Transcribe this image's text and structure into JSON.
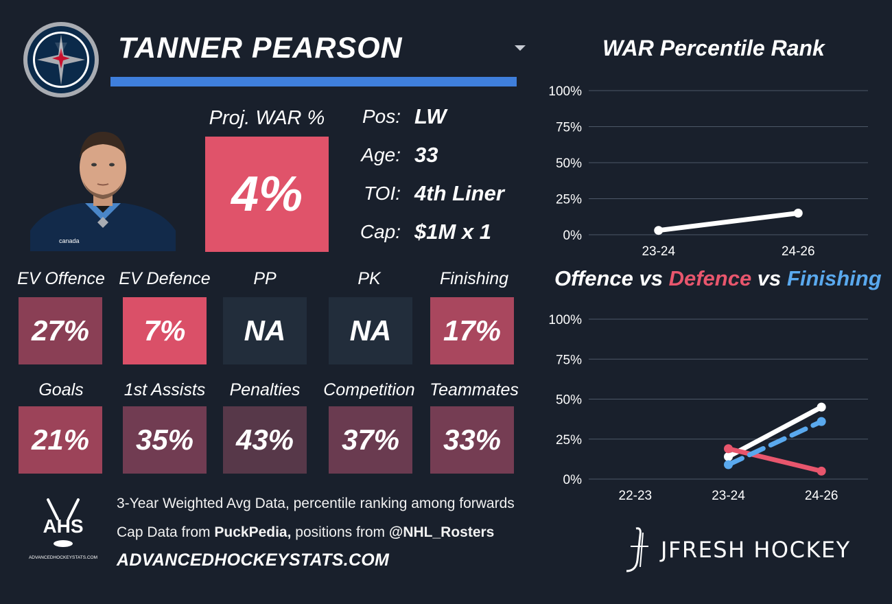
{
  "team": {
    "logo": "winnipeg-jets-logo",
    "colors": {
      "navy": "#0b2a4a",
      "blue": "#3f7fdc",
      "silver": "#a9acb2",
      "red": "#c8102e"
    }
  },
  "player": {
    "name": "TANNER PEARSON",
    "headshot": "player-headshot",
    "jersey_text": "canada"
  },
  "proj_war": {
    "label": "Proj. WAR %",
    "value": "4%",
    "color": "#e0536a"
  },
  "info": [
    {
      "label": "Pos:",
      "value": "LW"
    },
    {
      "label": "Age:",
      "value": "33"
    },
    {
      "label": "TOI:",
      "value": "4th Liner"
    },
    {
      "label": "Cap:",
      "value": "$1M x 1"
    }
  ],
  "stats_row1": [
    {
      "label": "EV Offence",
      "value": "27%",
      "color": "#8a3f55"
    },
    {
      "label": "EV Defence",
      "value": "7%",
      "color": "#da5068"
    },
    {
      "label": "PP",
      "value": "NA",
      "color": "#222d3b"
    },
    {
      "label": "PK",
      "value": "NA",
      "color": "#222d3b"
    },
    {
      "label": "Finishing",
      "value": "17%",
      "color": "#a9475e"
    }
  ],
  "stats_row2": [
    {
      "label": "Goals",
      "value": "21%",
      "color": "#9c4359"
    },
    {
      "label": "1st Assists",
      "value": "35%",
      "color": "#713c52"
    },
    {
      "label": "Penalties",
      "value": "43%",
      "color": "#573849"
    },
    {
      "label": "Competition",
      "value": "37%",
      "color": "#6a3b50"
    },
    {
      "label": "Teammates",
      "value": "33%",
      "color": "#753d53"
    }
  ],
  "footer": {
    "line1": "3-Year Weighted Avg Data, percentile ranking among forwards",
    "line2_prefix": "Cap Data from ",
    "line2_source1": "PuckPedia,",
    "line2_mid": " positions from ",
    "line2_source2": "@NHL_Rosters",
    "site": "ADVANCEDHOCKEYSTATS.COM",
    "ahs_logo": {
      "text": "AHS",
      "small": "ADVANCEDHOCKEYSTATS.COM"
    },
    "jfresh_logo": {
      "text": "JFRESH HOCKEY"
    }
  },
  "chart_data": [
    {
      "type": "line",
      "title": "WAR Percentile Rank",
      "categories": [
        "23-24",
        "24-26"
      ],
      "series": [
        {
          "values": [
            3,
            15
          ],
          "color": "#ffffff"
        }
      ],
      "ylim": [
        0,
        100
      ],
      "yticks": [
        "0%",
        "25%",
        "50%",
        "75%",
        "100%"
      ],
      "grid": true
    },
    {
      "type": "line",
      "title_parts": [
        {
          "text": "Offence",
          "color": "#ffffff"
        },
        {
          "text": " vs ",
          "color": "#ffffff"
        },
        {
          "text": "Defence",
          "color": "#e8566d"
        },
        {
          "text": " vs ",
          "color": "#ffffff"
        },
        {
          "text": "Finishing",
          "color": "#5aa9ee"
        }
      ],
      "categories": [
        "22-23",
        "23-24",
        "24-26"
      ],
      "series": [
        {
          "values": [
            null,
            14,
            45
          ],
          "color": "#ffffff",
          "dash": false
        },
        {
          "values": [
            null,
            19,
            5
          ],
          "color": "#e8566d",
          "dash": false
        },
        {
          "values": [
            null,
            9,
            36
          ],
          "color": "#5aa9ee",
          "dash": true
        }
      ],
      "ylim": [
        0,
        100
      ],
      "yticks": [
        "0%",
        "25%",
        "50%",
        "75%",
        "100%"
      ],
      "grid": true
    }
  ]
}
